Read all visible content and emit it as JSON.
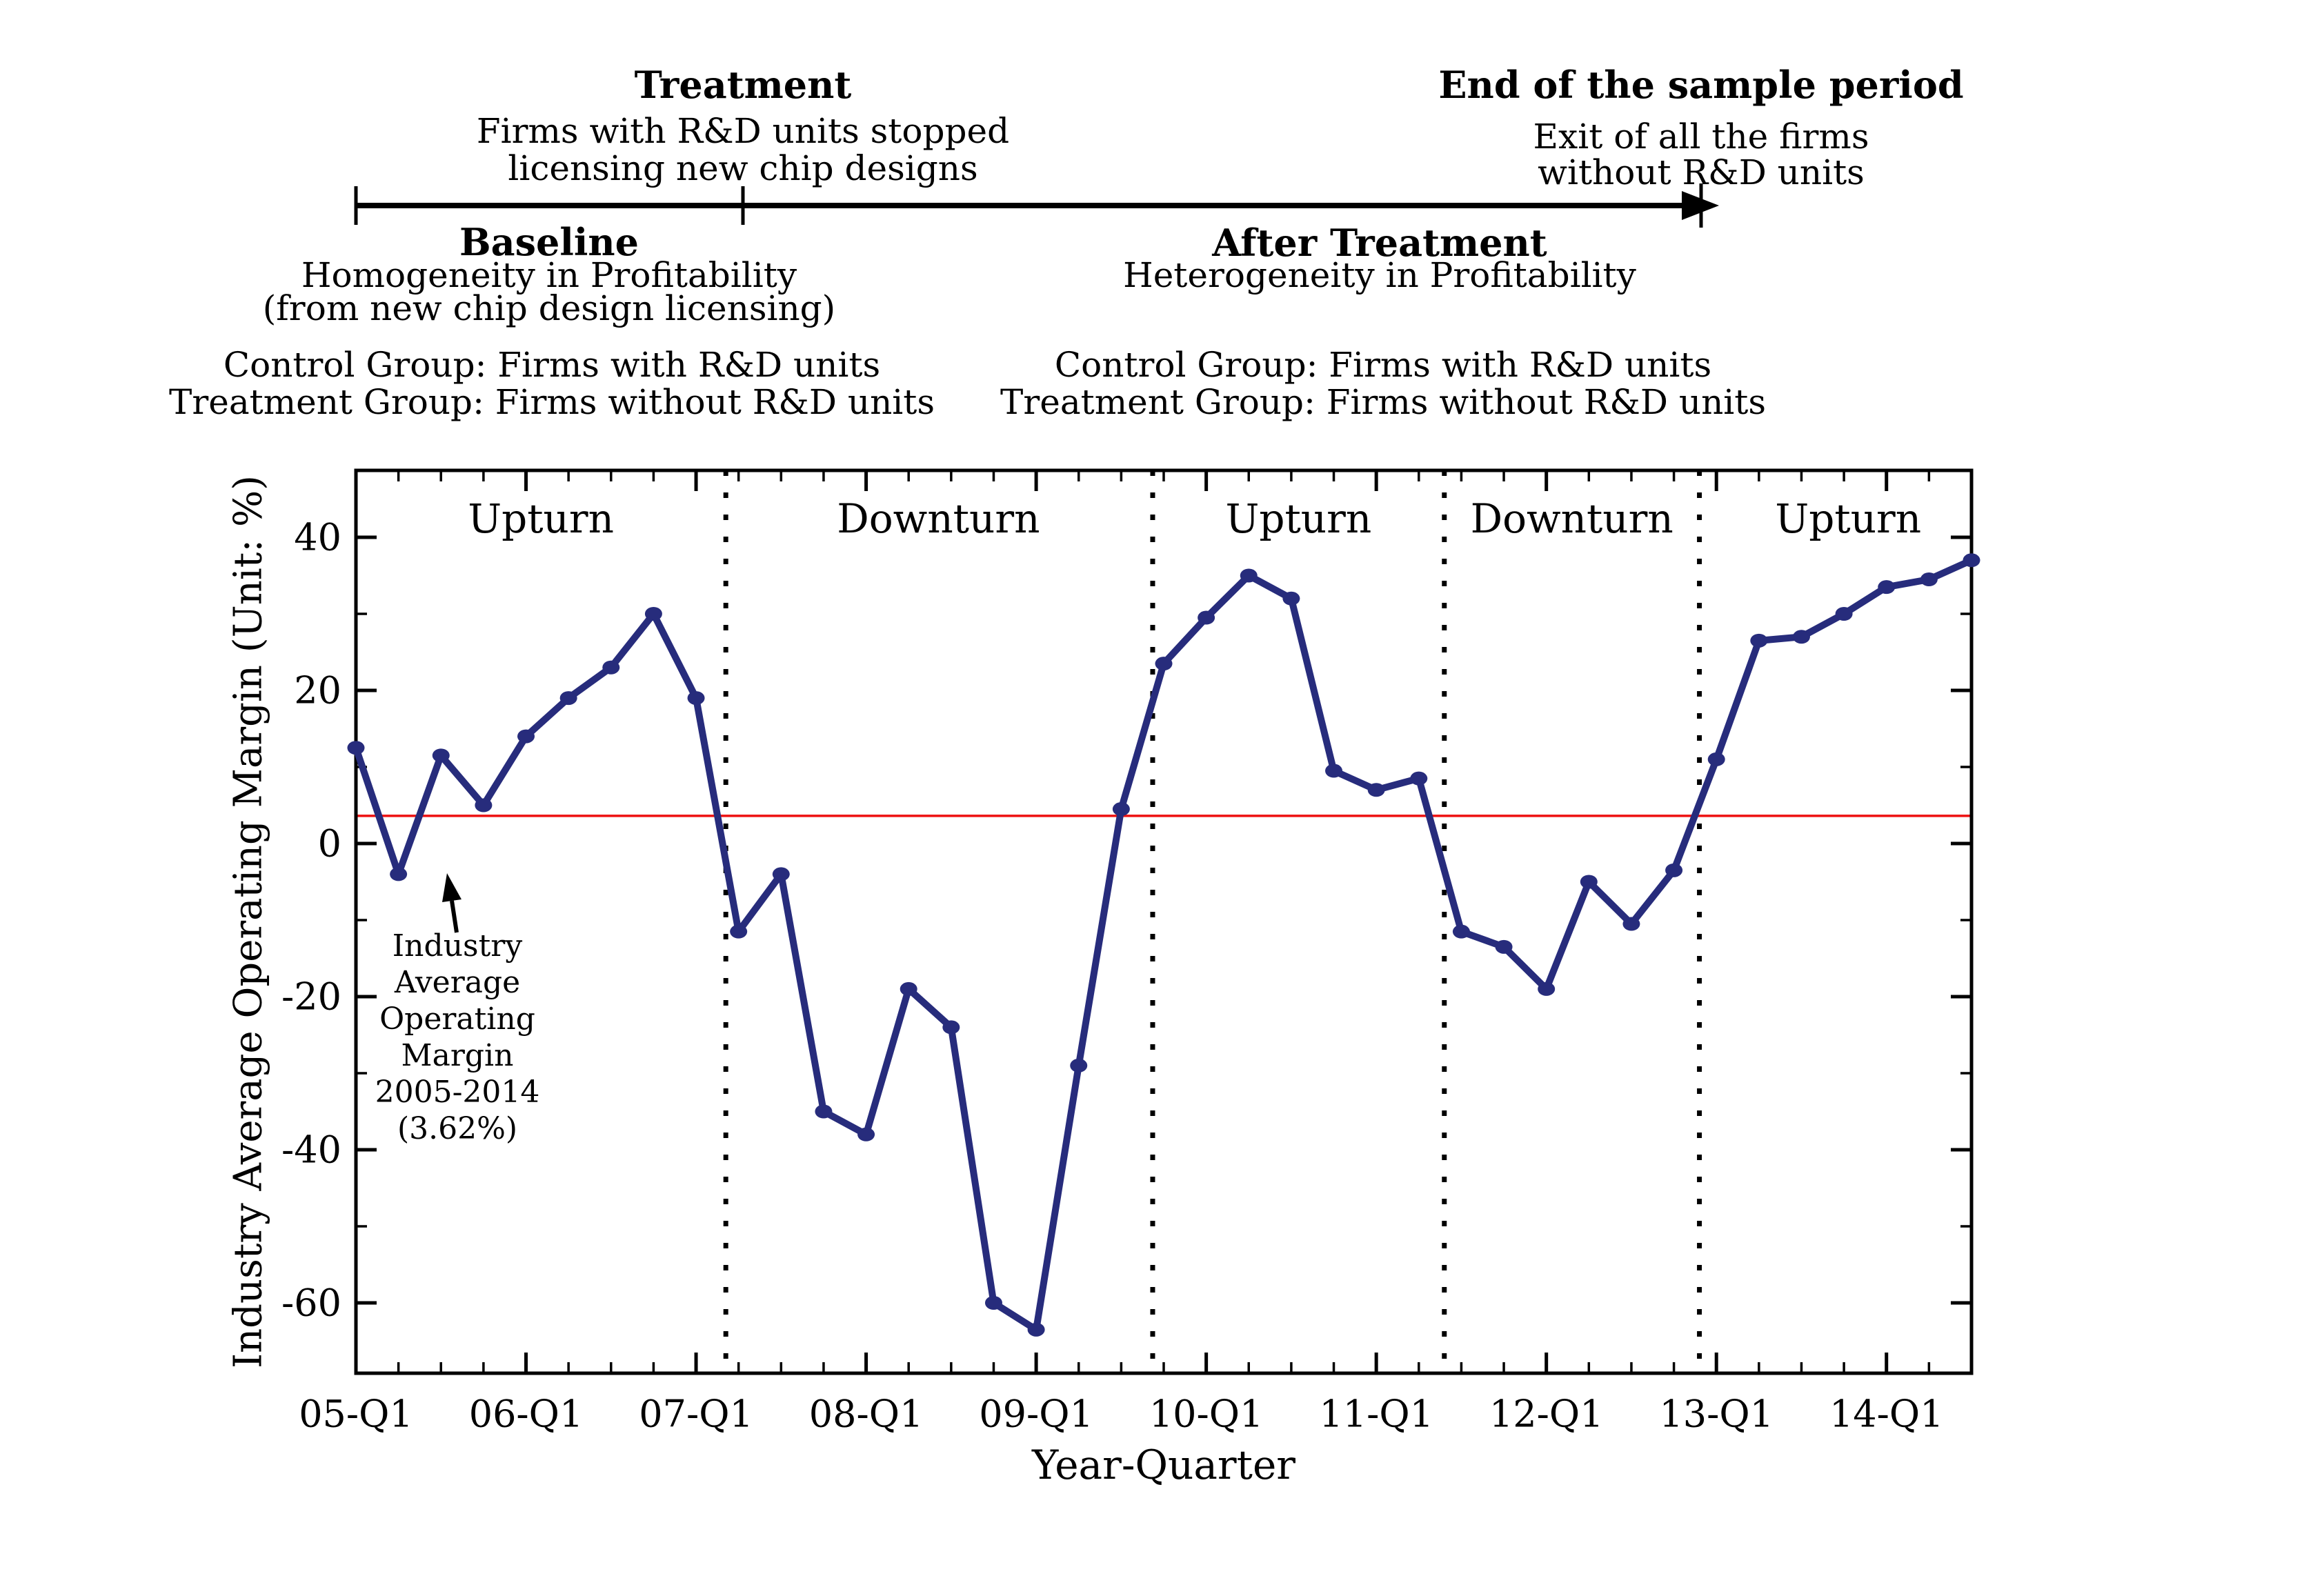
{
  "figure": {
    "header": {
      "treatment": {
        "title": "Treatment",
        "lines": [
          "Firms with R&D units stopped",
          "licensing new chip designs"
        ]
      },
      "end_of_sample": {
        "title": "End of the sample period",
        "lines": [
          "Exit of all the firms",
          "without R&D units"
        ]
      },
      "baseline": {
        "title": "Baseline",
        "lines": [
          "Homogeneity in Profitability",
          "(from new chip design licensing)"
        ],
        "groups": [
          "Control Group: Firms with R&D units",
          "Treatment Group: Firms without R&D units"
        ]
      },
      "after_treatment": {
        "title": "After Treatment",
        "lines": [
          "Heterogeneity in Profitability"
        ],
        "groups": [
          "Control Group: Firms with R&D units",
          "Treatment Group: Firms without R&D units"
        ]
      }
    }
  },
  "chart_data": {
    "type": "line",
    "title": "",
    "xlabel": "Year-Quarter",
    "ylabel": "Industry Average Operating Margin (Unit: %)",
    "series_name": "Industry average operating margin",
    "categories": [
      "05-Q1",
      "05-Q2",
      "05-Q3",
      "05-Q4",
      "06-Q1",
      "06-Q2",
      "06-Q3",
      "06-Q4",
      "07-Q1",
      "07-Q2",
      "07-Q3",
      "07-Q4",
      "08-Q1",
      "08-Q2",
      "08-Q3",
      "08-Q4",
      "09-Q1",
      "09-Q2",
      "09-Q3",
      "09-Q4",
      "10-Q1",
      "10-Q2",
      "10-Q3",
      "10-Q4",
      "11-Q1",
      "11-Q2",
      "11-Q3",
      "11-Q4",
      "12-Q1",
      "12-Q2",
      "12-Q3",
      "12-Q4",
      "13-Q1",
      "13-Q2",
      "13-Q3",
      "13-Q4",
      "14-Q1",
      "14-Q2",
      "14-Q3"
    ],
    "values": [
      12.5,
      -4,
      11.5,
      5,
      14,
      19,
      23,
      30,
      19,
      -11.5,
      -4,
      -35,
      -38,
      -19,
      -24,
      -60,
      -63.5,
      -29,
      4.5,
      23.5,
      29.5,
      35,
      32,
      9.5,
      7,
      8.5,
      -11.5,
      -13.5,
      -19,
      -5,
      -10.5,
      -3.5,
      11,
      26.5,
      27,
      30,
      33.5,
      34.5,
      37
    ],
    "x_tick_labels": [
      "05-Q1",
      "06-Q1",
      "07-Q1",
      "08-Q1",
      "09-Q1",
      "10-Q1",
      "11-Q1",
      "12-Q1",
      "13-Q1",
      "14-Q1"
    ],
    "y_ticks": [
      40,
      20,
      0,
      -20,
      -40,
      -60
    ],
    "y_minor_ticks": [
      30,
      10,
      -10,
      -30,
      -50
    ],
    "ylim": [
      -69,
      48.5
    ],
    "grid": false,
    "legend_position": "none",
    "colors": {
      "series": "#272c7c",
      "reference": "#ee1111",
      "axis": "#000000"
    },
    "reference_line": {
      "value": 3.62,
      "label_lines": [
        "Industry",
        "Average",
        "Operating",
        "Margin",
        "2005-2014",
        "(3.62%)"
      ]
    },
    "phase_dividers_quarter_index": [
      8.7,
      18.74,
      25.6,
      31.6
    ],
    "phases": [
      {
        "label": "Upturn",
        "center_quarter_index": 4.35
      },
      {
        "label": "Downturn",
        "center_quarter_index": 13.7
      },
      {
        "label": "Upturn",
        "center_quarter_index": 22.17
      },
      {
        "label": "Downturn",
        "center_quarter_index": 28.6
      },
      {
        "label": "Upturn",
        "center_quarter_index": 35.1
      }
    ]
  }
}
